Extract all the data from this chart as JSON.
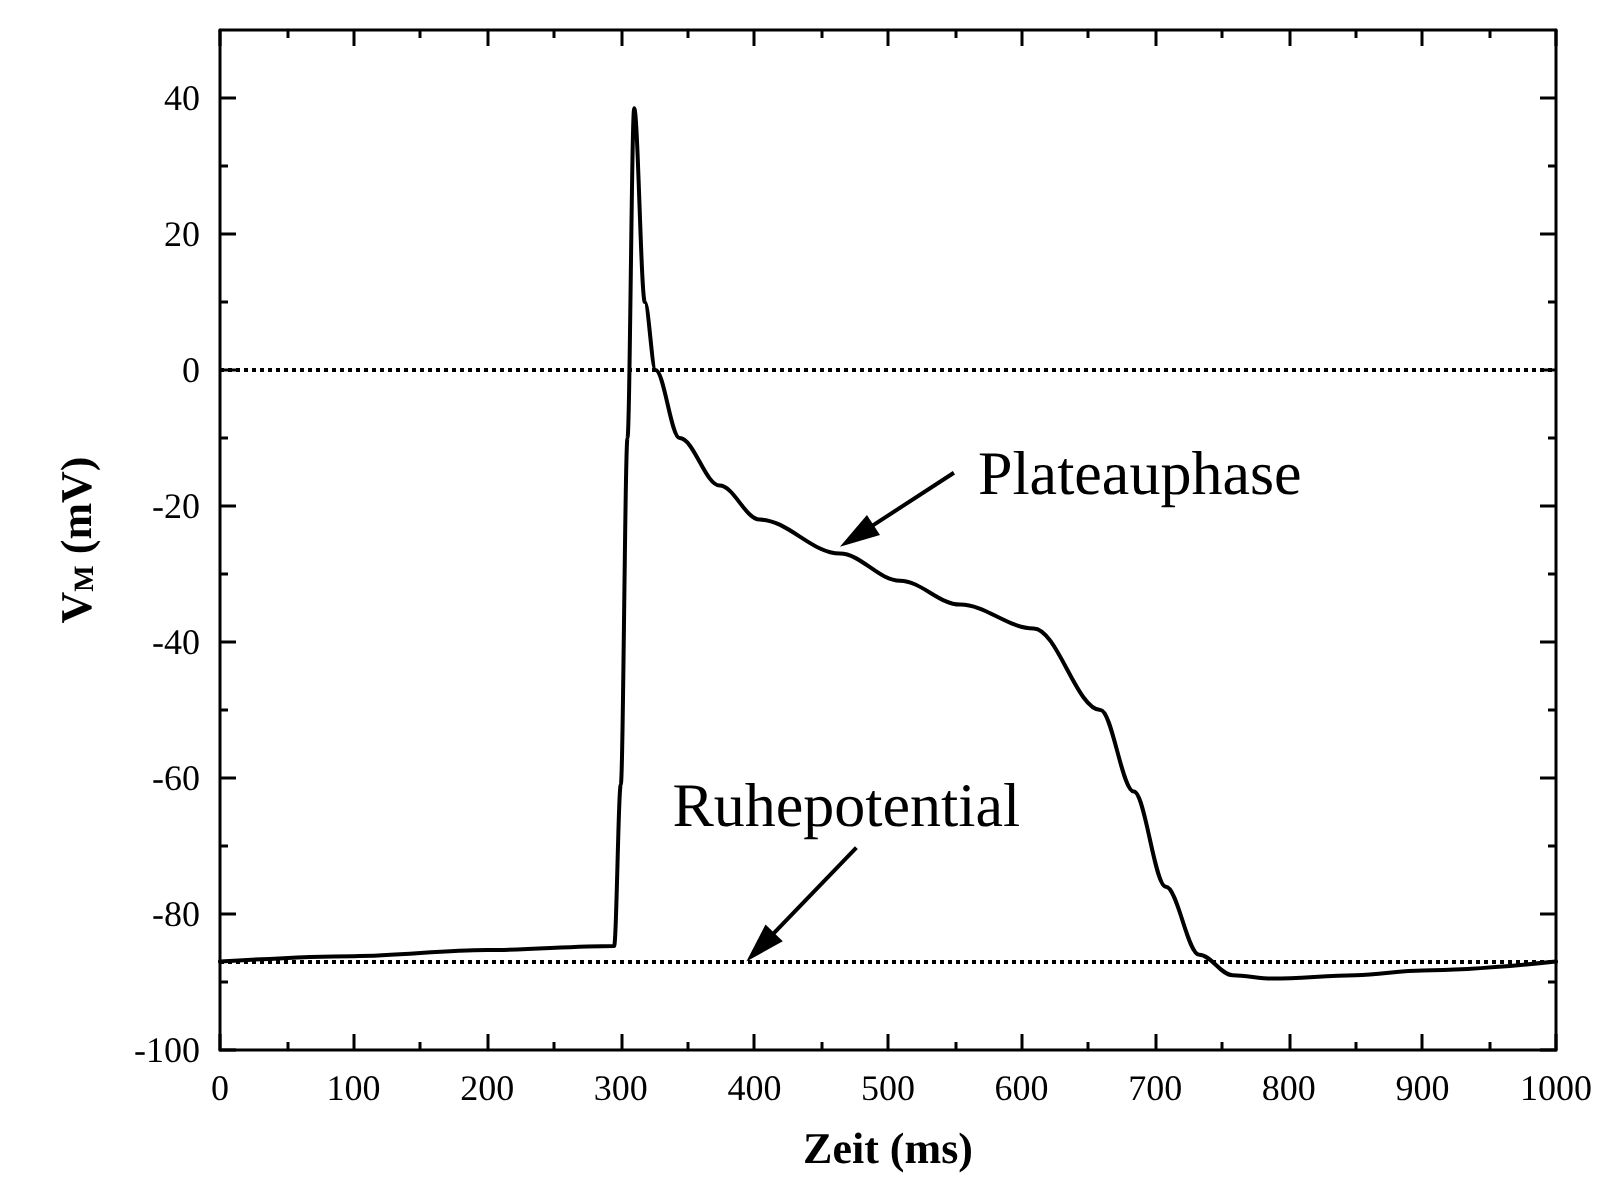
{
  "chart_data": {
    "type": "line",
    "xlabel": "Zeit (ms)",
    "ylabel": "V$_{M}$ (mV)",
    "x": [
      0,
      100,
      200,
      295,
      300,
      305,
      310,
      318,
      326,
      344,
      374,
      404,
      464,
      509,
      554,
      609,
      659,
      684,
      708,
      733,
      758,
      788,
      850,
      900,
      1000
    ],
    "series": [
      {
        "color": "#000000",
        "values": [
          -87,
          -86.2,
          -85.3,
          -84.7,
          -61,
          -10,
          38.5,
          10,
          0,
          -10,
          -17,
          -22,
          -27,
          -31,
          -34.5,
          -38,
          -50,
          -62,
          -76,
          -86,
          -89,
          -89.5,
          -89,
          -88.3,
          -87
        ]
      }
    ],
    "xlim": [
      0,
      1000
    ],
    "xticks": [
      0,
      100,
      200,
      300,
      400,
      500,
      600,
      700,
      800,
      900,
      1000
    ],
    "ylim": [
      -100,
      50
    ],
    "yticks": [
      -100,
      -80,
      -60,
      -40,
      -20,
      0,
      20,
      40
    ],
    "grid": false,
    "marker": "none",
    "line_style": "solid",
    "ref_lines": [
      {
        "axis": "y",
        "value": 0,
        "line_style": "dotted",
        "color": "#000000"
      },
      {
        "axis": "y",
        "value": -87,
        "line_style": "dotted",
        "color": "#000000"
      }
    ],
    "annotations": [
      {
        "text": "Plateauphase",
        "x": 464,
        "y": -26
      },
      {
        "text": "Ruhepotential",
        "x": 394,
        "y": -87
      }
    ]
  }
}
